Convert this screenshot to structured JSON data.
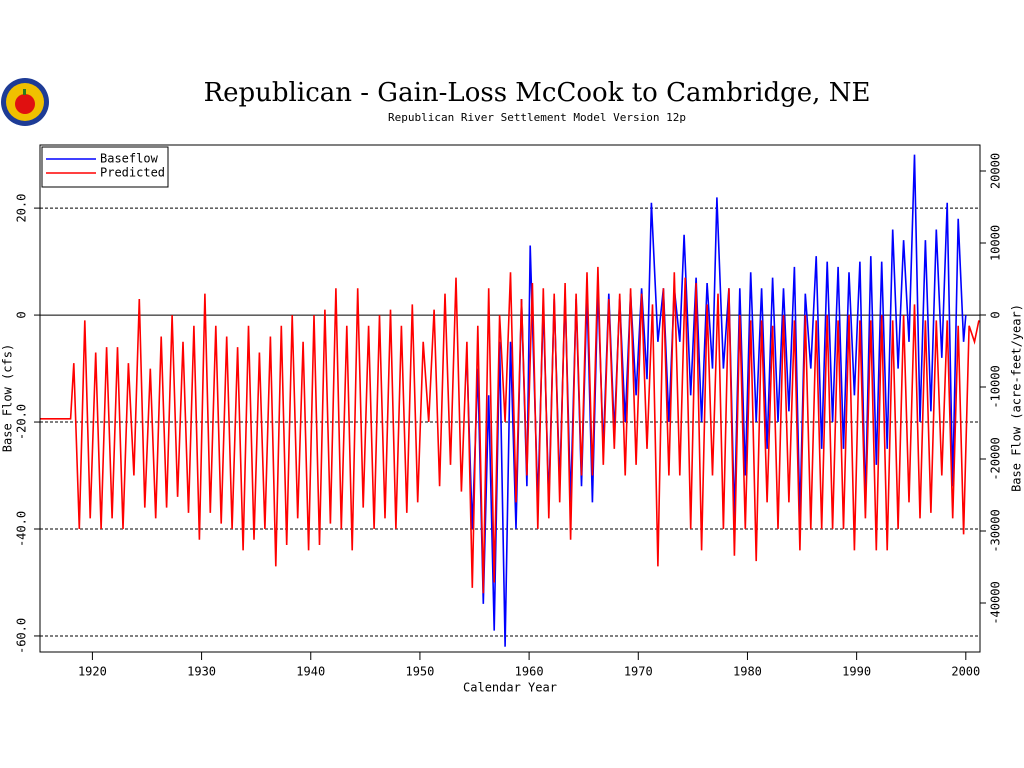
{
  "chart_data": {
    "type": "line",
    "title": "Republican - Gain-Loss McCook to Cambridge, NE",
    "subtitle": "Republican River Settlement Model Version 12p",
    "xlabel": "Calendar Year",
    "ylabel": "Base Flow (cfs)",
    "y2label": "Base Flow (acre-feet/year)",
    "xlim": [
      1915.2,
      2001.3
    ],
    "xticks": [
      1920,
      1930,
      1940,
      1950,
      1960,
      1970,
      1980,
      1990,
      2000
    ],
    "ylim": [
      -63,
      31.8
    ],
    "yticks": [
      {
        "value": 20,
        "label": "20.0"
      },
      0,
      {
        "value": -20,
        "label": "-20.0"
      },
      {
        "value": -40,
        "label": "-40.0"
      },
      {
        "value": -60,
        "label": "-60.0"
      }
    ],
    "y2lim": [
      -46806,
      23611
    ],
    "y2ticks": [
      20000,
      10000,
      0,
      -10000,
      -20000,
      -30000,
      -40000
    ],
    "grid": true,
    "legend": "upper left",
    "series": [
      {
        "name": "Baseflow",
        "color": "#0000ff",
        "x": [
          1954.3,
          1954.8,
          1955.3,
          1955.8,
          1956.3,
          1956.8,
          1957.3,
          1957.8,
          1958.3,
          1958.8,
          1959.3,
          1959.8,
          1960.1,
          1960.8,
          1961.3,
          1961.8,
          1962.3,
          1962.8,
          1963.3,
          1963.8,
          1964.3,
          1964.8,
          1965.3,
          1965.8,
          1966.3,
          1966.8,
          1967.3,
          1967.8,
          1968.3,
          1968.8,
          1969.3,
          1969.8,
          1970.3,
          1970.8,
          1971.2,
          1971.8,
          1972.3,
          1972.8,
          1973.3,
          1973.8,
          1974.2,
          1974.8,
          1975.3,
          1975.8,
          1976.3,
          1976.8,
          1977.2,
          1977.8,
          1978.3,
          1978.8,
          1979.3,
          1979.8,
          1980.3,
          1980.8,
          1981.3,
          1981.8,
          1982.3,
          1982.8,
          1983.3,
          1983.8,
          1984.3,
          1984.8,
          1985.3,
          1985.8,
          1986.3,
          1986.8,
          1987.3,
          1987.8,
          1988.3,
          1988.8,
          1989.3,
          1989.8,
          1990.3,
          1990.8,
          1991.3,
          1991.8,
          1992.3,
          1992.8,
          1993.3,
          1993.8,
          1994.3,
          1994.8,
          1995.3,
          1995.8,
          1996.3,
          1996.8,
          1997.3,
          1997.8,
          1998.3,
          1998.8,
          1999.3,
          1999.8,
          2000.0
        ],
        "values": [
          -8,
          -40,
          -10,
          -54,
          -15,
          -59,
          -5,
          -62,
          -5,
          -40,
          3,
          -32,
          13,
          -35,
          2,
          -35,
          3,
          -32,
          4,
          -35,
          3,
          -32,
          4,
          -35,
          5,
          -25,
          4,
          -22,
          3,
          -20,
          4,
          -15,
          5,
          -12,
          21,
          -5,
          5,
          -20,
          5,
          -5,
          15,
          -15,
          7,
          -20,
          6,
          -10,
          22,
          -10,
          5,
          -38,
          5,
          -30,
          8,
          -20,
          5,
          -25,
          7,
          -20,
          5,
          -18,
          9,
          -38,
          4,
          -10,
          11,
          -25,
          10,
          -20,
          9,
          -25,
          8,
          -15,
          10,
          -35,
          11,
          -28,
          10,
          -25,
          16,
          -10,
          14,
          -5,
          30,
          -20,
          14,
          -18,
          16,
          -8,
          21,
          -32,
          18,
          -5,
          0
        ]
      },
      {
        "name": "Predicted",
        "color": "#ff0000",
        "x": [
          1915.2,
          1918.0,
          1918.3,
          1918.8,
          1919.3,
          1919.8,
          1920.3,
          1920.8,
          1921.3,
          1921.8,
          1922.3,
          1922.8,
          1923.3,
          1923.8,
          1924.3,
          1924.8,
          1925.3,
          1925.8,
          1926.3,
          1926.8,
          1927.3,
          1927.8,
          1928.3,
          1928.8,
          1929.3,
          1929.8,
          1930.3,
          1930.8,
          1931.3,
          1931.8,
          1932.3,
          1932.8,
          1933.3,
          1933.8,
          1934.3,
          1934.8,
          1935.3,
          1935.8,
          1936.3,
          1936.8,
          1937.3,
          1937.8,
          1938.3,
          1938.8,
          1939.3,
          1939.8,
          1940.3,
          1940.8,
          1941.3,
          1941.8,
          1942.3,
          1942.8,
          1943.3,
          1943.8,
          1944.3,
          1944.8,
          1945.3,
          1945.8,
          1946.3,
          1946.8,
          1947.3,
          1947.8,
          1948.3,
          1948.8,
          1949.3,
          1949.8,
          1950.3,
          1950.8,
          1951.3,
          1951.8,
          1952.3,
          1952.8,
          1953.3,
          1953.8,
          1954.3,
          1954.8,
          1955.3,
          1955.8,
          1956.3,
          1956.8,
          1957.3,
          1957.8,
          1958.3,
          1958.8,
          1959.3,
          1959.8,
          1960.3,
          1960.8,
          1961.3,
          1961.8,
          1962.3,
          1962.8,
          1963.3,
          1963.8,
          1964.3,
          1964.8,
          1965.3,
          1965.8,
          1966.3,
          1966.8,
          1967.3,
          1967.8,
          1968.3,
          1968.8,
          1969.3,
          1969.8,
          1970.3,
          1970.8,
          1971.3,
          1971.8,
          1972.3,
          1972.8,
          1973.3,
          1973.8,
          1974.3,
          1974.8,
          1975.3,
          1975.8,
          1976.3,
          1976.8,
          1977.3,
          1977.8,
          1978.3,
          1978.8,
          1979.3,
          1979.8,
          1980.3,
          1980.8,
          1981.3,
          1981.8,
          1982.3,
          1982.8,
          1983.3,
          1983.8,
          1984.3,
          1984.8,
          1985.3,
          1985.8,
          1986.3,
          1986.8,
          1987.3,
          1987.8,
          1988.3,
          1988.8,
          1989.3,
          1989.8,
          1990.3,
          1990.8,
          1991.3,
          1991.8,
          1992.3,
          1992.8,
          1993.3,
          1993.8,
          1994.3,
          1994.8,
          1995.3,
          1995.8,
          1996.3,
          1996.8,
          1997.3,
          1997.8,
          1998.3,
          1998.8,
          1999.3,
          1999.8,
          2000.3,
          2000.8,
          2001.2
        ],
        "values": [
          -19.4,
          -19.4,
          -9,
          -40,
          -1,
          -38,
          -7,
          -40,
          -6,
          -38,
          -6,
          -40,
          -9,
          -30,
          3,
          -36,
          -10,
          -38,
          -4,
          -36,
          0,
          -34,
          -5,
          -37,
          -2,
          -42,
          4,
          -37,
          -2,
          -39,
          -4,
          -40,
          -6,
          -44,
          -2,
          -42,
          -7,
          -40,
          -4,
          -47,
          -2,
          -43,
          0,
          -38,
          -5,
          -44,
          0,
          -43,
          1,
          -39,
          5,
          -40,
          -2,
          -44,
          5,
          -36,
          -2,
          -40,
          0,
          -38,
          1,
          -40,
          -2,
          -37,
          2,
          -35,
          -5,
          -20,
          1,
          -32,
          4,
          -28,
          7,
          -33,
          -5,
          -51,
          -2,
          -52,
          5,
          -50,
          0,
          -20,
          8,
          -35,
          3,
          -30,
          6,
          -40,
          5,
          -38,
          4,
          -35,
          6,
          -42,
          4,
          -30,
          8,
          -30,
          9,
          -28,
          3,
          -25,
          4,
          -30,
          5,
          -28,
          4,
          -25,
          2,
          -47,
          5,
          -30,
          8,
          -30,
          7,
          -40,
          6,
          -44,
          2,
          -30,
          4,
          -40,
          5,
          -45,
          0,
          -40,
          -1,
          -46,
          -1,
          -35,
          -2,
          -40,
          0,
          -35,
          -1,
          -44,
          0,
          -40,
          -1,
          -40,
          0,
          -40,
          -1,
          -40,
          0,
          -44,
          -1,
          -38,
          -1,
          -44,
          0,
          -44,
          -1,
          -40,
          0,
          -35,
          2,
          -38,
          -1,
          -37,
          -1,
          -30,
          -1,
          -38,
          -2,
          -41,
          -2,
          -5,
          -1
        ]
      }
    ]
  }
}
